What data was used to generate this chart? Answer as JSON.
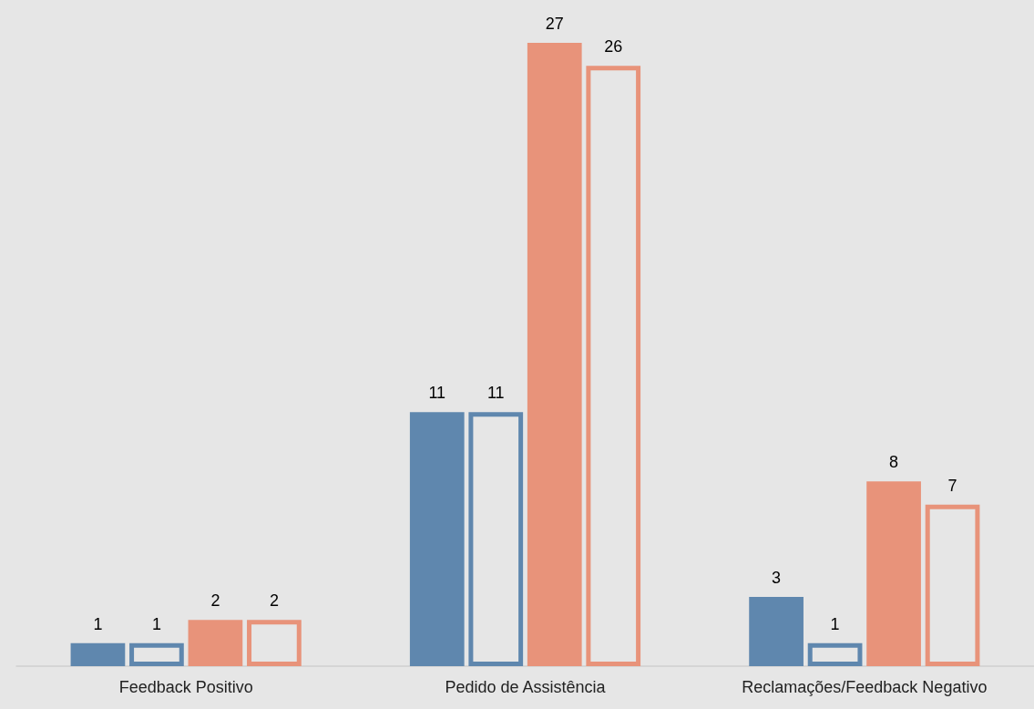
{
  "chart_data": {
    "type": "bar",
    "categories": [
      "Feedback Positivo",
      "Pedido de Assistência",
      "Reclamações/Feedback Negativo"
    ],
    "series": [
      {
        "color": "#5f87ae",
        "values": [
          1,
          11,
          3
        ]
      },
      {
        "color": "#5f87ae",
        "values": [
          1,
          11,
          1
        ]
      },
      {
        "color": "#e8937a",
        "values": [
          2,
          27,
          8
        ]
      },
      {
        "color": "#e8937a",
        "values": [
          2,
          26,
          7
        ]
      }
    ],
    "data_labels": true
  }
}
